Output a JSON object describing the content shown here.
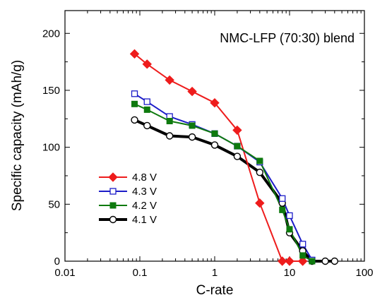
{
  "chart_data": {
    "type": "line",
    "annotation": "NMC-LFP (70:30) blend",
    "xlabel": "C-rate",
    "ylabel": "Specific capacity (mAh/g)",
    "x_scale": "log",
    "xlim": [
      0.01,
      100
    ],
    "ylim": [
      0,
      220
    ],
    "x_ticks": [
      0.01,
      0.1,
      1,
      10,
      100
    ],
    "x_tick_labels": [
      "0.01",
      "0.1",
      "1",
      "10",
      "100"
    ],
    "y_ticks": [
      0,
      50,
      100,
      150,
      200
    ],
    "y_tick_labels": [
      "0",
      "50",
      "100",
      "150",
      "200"
    ],
    "grid": false,
    "legend_position": "bottom-left",
    "series": [
      {
        "name": "4.8 V",
        "color": "#ee1c1c",
        "marker": "diamond-filled",
        "line_width": 2,
        "points": [
          [
            0.085,
            182
          ],
          [
            0.125,
            173
          ],
          [
            0.25,
            159
          ],
          [
            0.5,
            149
          ],
          [
            1.0,
            139
          ],
          [
            2.0,
            115
          ],
          [
            4.0,
            51
          ],
          [
            8.0,
            0
          ],
          [
            10.0,
            0
          ],
          [
            15.0,
            0
          ]
        ]
      },
      {
        "name": "4.3 V",
        "color": "#1c1cc8",
        "marker": "square-open",
        "line_width": 2,
        "points": [
          [
            0.085,
            147
          ],
          [
            0.125,
            140
          ],
          [
            0.25,
            127
          ],
          [
            0.5,
            120
          ],
          [
            1.0,
            112
          ],
          [
            2.0,
            101
          ],
          [
            4.0,
            87
          ],
          [
            8.0,
            55
          ],
          [
            10.0,
            40
          ],
          [
            15.0,
            15
          ],
          [
            20.0,
            1
          ]
        ]
      },
      {
        "name": "4.2 V",
        "color": "#0e7a0e",
        "marker": "square-filled",
        "line_width": 2,
        "points": [
          [
            0.085,
            138
          ],
          [
            0.125,
            133
          ],
          [
            0.25,
            123
          ],
          [
            0.5,
            119
          ],
          [
            1.0,
            112
          ],
          [
            2.0,
            101
          ],
          [
            4.0,
            88
          ],
          [
            8.0,
            45
          ],
          [
            10.0,
            28
          ],
          [
            15.0,
            5
          ],
          [
            20.0,
            0
          ]
        ]
      },
      {
        "name": "4.1 V",
        "color": "#000000",
        "marker": "circle-open",
        "line_width": 4,
        "points": [
          [
            0.085,
            124
          ],
          [
            0.125,
            119
          ],
          [
            0.25,
            110
          ],
          [
            0.5,
            109
          ],
          [
            1.0,
            102
          ],
          [
            2.0,
            92
          ],
          [
            4.0,
            78
          ],
          [
            8.0,
            51
          ],
          [
            10.0,
            25
          ],
          [
            15.0,
            9
          ],
          [
            20.0,
            0
          ],
          [
            30.0,
            0
          ],
          [
            40.0,
            0
          ]
        ]
      }
    ]
  }
}
